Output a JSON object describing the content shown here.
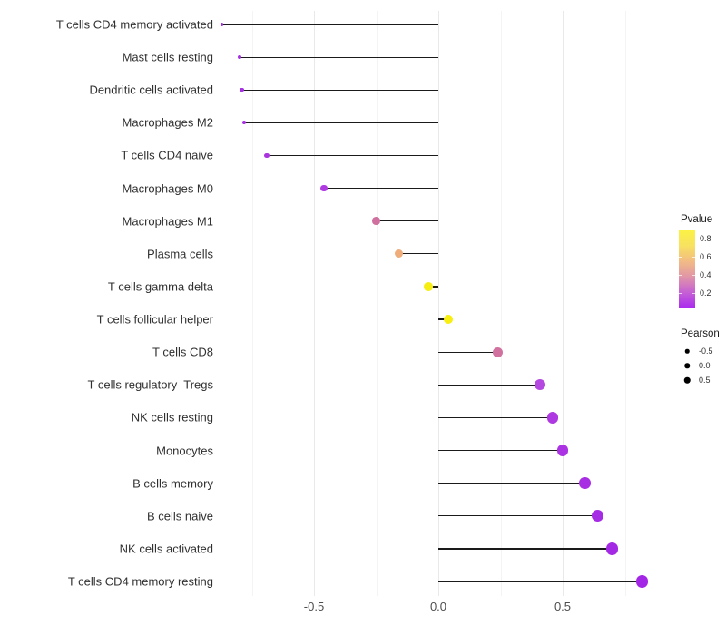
{
  "chart_data": {
    "type": "scatter",
    "subtype": "lollipop",
    "title": "",
    "xlabel": "",
    "ylabel": "",
    "xlim": [
      -0.9,
      0.95
    ],
    "x_tick_labels": [
      "-0.5",
      "0.0",
      "0.5"
    ],
    "x_tick_values": [
      -0.5,
      0.0,
      0.5
    ],
    "x_minor_gridlines": [
      -0.75,
      -0.25,
      0.25,
      0.75
    ],
    "grid": "vertical gridlines only, white background",
    "points": [
      {
        "label": "T cells CD4 memory activated",
        "pearson": -0.87,
        "pvalue": 0.03,
        "color": "#A22CE2"
      },
      {
        "label": "Mast cells resting",
        "pearson": -0.8,
        "pvalue": 0.05,
        "color": "#A52FE2"
      },
      {
        "label": "Dendritic cells activated",
        "pearson": -0.79,
        "pvalue": 0.05,
        "color": "#A52FE2"
      },
      {
        "label": "Macrophages M2",
        "pearson": -0.78,
        "pvalue": 0.06,
        "color": "#A731E1"
      },
      {
        "label": "T cells CD4 naive",
        "pearson": -0.69,
        "pvalue": 0.08,
        "color": "#AA35E0"
      },
      {
        "label": "Macrophages M0",
        "pearson": -0.46,
        "pvalue": 0.12,
        "color": "#B13BE2"
      },
      {
        "label": "Macrophages M1",
        "pearson": -0.25,
        "pvalue": 0.45,
        "color": "#D0709F"
      },
      {
        "label": "Plasma cells",
        "pearson": -0.16,
        "pvalue": 0.62,
        "color": "#EFAD7B"
      },
      {
        "label": "T cells gamma delta",
        "pearson": -0.04,
        "pvalue": 0.88,
        "color": "#F6EE12"
      },
      {
        "label": "T cells follicular helper",
        "pearson": 0.04,
        "pvalue": 0.9,
        "color": "#F8EE10"
      },
      {
        "label": "T cells CD8",
        "pearson": 0.24,
        "pvalue": 0.45,
        "color": "#D1719F"
      },
      {
        "label": "T cells regulatory  Tregs",
        "pearson": 0.41,
        "pvalue": 0.15,
        "color": "#B548E0"
      },
      {
        "label": "NK cells resting",
        "pearson": 0.46,
        "pvalue": 0.1,
        "color": "#AE38E2"
      },
      {
        "label": "Monocytes",
        "pearson": 0.5,
        "pvalue": 0.08,
        "color": "#AB33E3"
      },
      {
        "label": "B cells memory",
        "pearson": 0.59,
        "pvalue": 0.06,
        "color": "#A82EE3"
      },
      {
        "label": "B cells naive",
        "pearson": 0.64,
        "pvalue": 0.04,
        "color": "#A62BE4"
      },
      {
        "label": "NK cells activated",
        "pearson": 0.7,
        "pvalue": 0.03,
        "color": "#A429E5"
      },
      {
        "label": "T cells CD4 memory resting",
        "pearson": 0.82,
        "pvalue": 0.02,
        "color": "#A326E6"
      }
    ],
    "legends": {
      "pvalue": {
        "title": "Pvalue",
        "tick_labels": [
          "0.8",
          "0.6",
          "0.4",
          "0.2"
        ],
        "range": [
          0.02,
          0.9
        ],
        "gradient_stops_top_to_bottom": [
          "#FBF243",
          "#F8E25F",
          "#F2BC84",
          "#E095A8",
          "#C55FD5",
          "#A928EF"
        ]
      },
      "pearson": {
        "title": "Pearson",
        "items": [
          {
            "label": "-0.5",
            "size": 4.5
          },
          {
            "label": "0.0",
            "size": 5.5
          },
          {
            "label": "0.5",
            "size": 6.5
          }
        ],
        "dot_color": "#000000"
      }
    },
    "colors": {
      "stem": "#1a1a1a",
      "grid_major": "#e9e9e9",
      "grid_minor": "#f4f4f4",
      "axis_text": "#4d4d4d",
      "label_text": "#303030",
      "background": "#ffffff"
    }
  }
}
